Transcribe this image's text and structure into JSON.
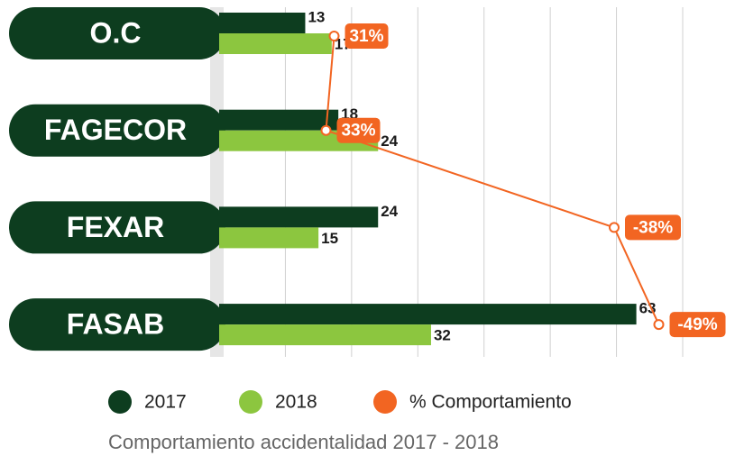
{
  "chart_data": {
    "type": "bar",
    "orientation": "horizontal",
    "title": "Comportamiento accidentalidad 2017 - 2018",
    "categories": [
      "O.C",
      "FAGECOR",
      "FEXAR",
      "FASAB"
    ],
    "series": [
      {
        "name": "2017",
        "color": "#0d3d1f",
        "values": [
          13,
          18,
          24,
          63
        ]
      },
      {
        "name": "2018",
        "color": "#8cc63f",
        "values": [
          17,
          24,
          15,
          32
        ]
      },
      {
        "name": "% Comportamiento",
        "type": "line",
        "axis": "x2",
        "color": "#f26522",
        "values": [
          31,
          33,
          -38,
          -49
        ],
        "value_labels": [
          "31%",
          "33%",
          "-38%",
          "-49%"
        ]
      }
    ],
    "xlim": [
      0,
      70
    ],
    "xticks": [
      10,
      20,
      30,
      40,
      50,
      60,
      70
    ],
    "x2lim": [
      40,
      -60
    ],
    "grid": true,
    "legend": "bottom"
  }
}
